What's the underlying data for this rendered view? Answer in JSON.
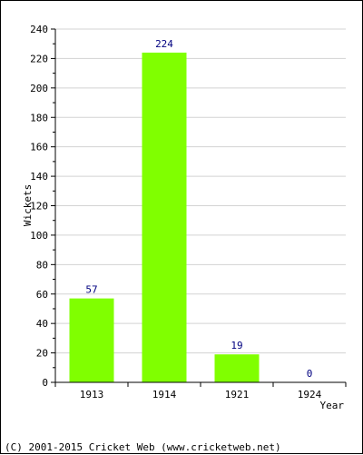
{
  "chart_data": {
    "type": "bar",
    "categories": [
      "1913",
      "1914",
      "1921",
      "1924"
    ],
    "values": [
      57,
      224,
      19,
      0
    ],
    "data_labels": [
      "57",
      "224",
      "19",
      "0"
    ],
    "ylabel": "Wickets",
    "xlabel": "Year",
    "ylim": [
      0,
      240
    ],
    "yticks": [
      "0",
      "20",
      "40",
      "60",
      "80",
      "100",
      "120",
      "140",
      "160",
      "180",
      "200",
      "220",
      "240"
    ],
    "grid": true,
    "bar_color": "#80ff00",
    "label_color": "#000080",
    "grid_color": "#d3d3d3"
  },
  "footer": {
    "copyright": "(C) 2001-2015 Cricket Web (www.cricketweb.net)"
  }
}
